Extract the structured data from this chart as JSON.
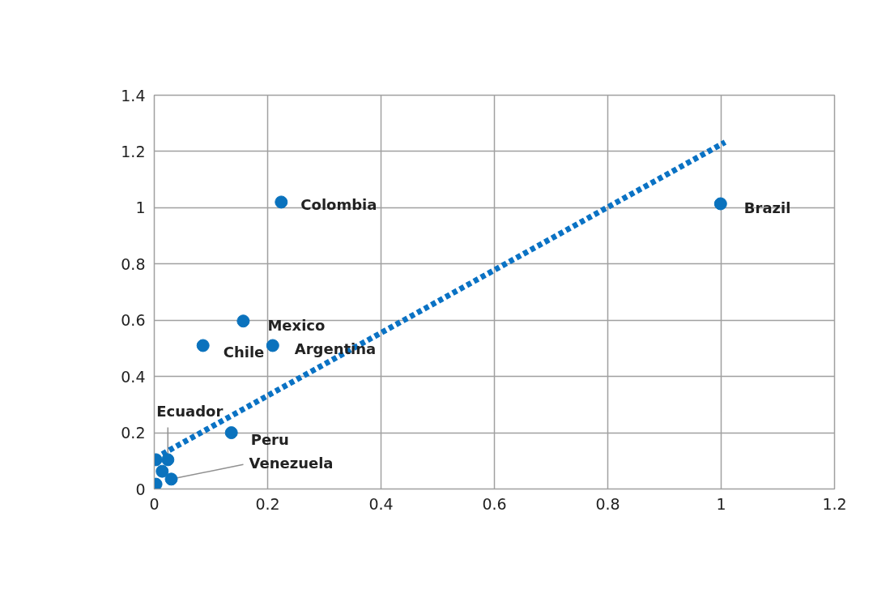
{
  "chart_data": {
    "type": "scatter",
    "xlim": [
      0,
      1.2
    ],
    "ylim": [
      0,
      1.4
    ],
    "xticks": [
      0,
      0.2,
      0.4,
      0.6,
      0.8,
      1,
      1.2
    ],
    "yticks": [
      0,
      0.2,
      0.4,
      0.6,
      0.8,
      1,
      1.2,
      1.4
    ],
    "grid": true,
    "marker": "circle",
    "series": [
      {
        "color": "#0a72bd",
        "x": [
          0.224,
          0.999,
          0.157,
          0.086,
          0.209,
          0.136,
          0.003,
          0.024,
          0.014,
          0.03,
          0.003
        ],
        "values": [
          1.02,
          1.014,
          0.597,
          0.51,
          0.51,
          0.2,
          0.104,
          0.104,
          0.063,
          0.035,
          0.017
        ]
      },
      {
        "type": "line",
        "marker": "none",
        "color": "#0a72c4",
        "line_style": "dotted",
        "x": [
          0.014,
          1.007
        ],
        "values": [
          0.124,
          1.233
        ]
      }
    ],
    "annotations": [
      {
        "text": "Colombia",
        "x": 0.224,
        "y": 1.02
      },
      {
        "text": "Brazil",
        "x": 0.999,
        "y": 1.014
      },
      {
        "text": "Mexico",
        "x": 0.157,
        "y": 0.597
      },
      {
        "text": "Chile",
        "x": 0.086,
        "y": 0.51
      },
      {
        "text": "Argentina",
        "x": 0.209,
        "y": 0.51
      },
      {
        "text": "Peru",
        "x": 0.136,
        "y": 0.2
      },
      {
        "text": "Ecuador",
        "x": 0.024,
        "y": 0.104
      },
      {
        "text": "Venezuela",
        "x": 0.03,
        "y": 0.035
      }
    ]
  }
}
